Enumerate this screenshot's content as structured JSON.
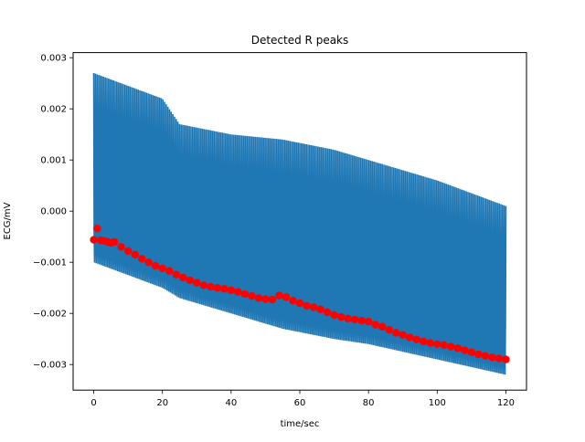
{
  "chart_data": {
    "type": "line",
    "title": "Detected R peaks",
    "xlabel": "time/sec",
    "ylabel": "ECG/mV",
    "xlim": [
      -6,
      126
    ],
    "ylim": [
      -0.0035,
      0.0031
    ],
    "xticks": [
      0,
      20,
      40,
      60,
      80,
      100,
      120
    ],
    "xtick_labels": [
      "0",
      "20",
      "40",
      "60",
      "80",
      "100",
      "120"
    ],
    "yticks": [
      -0.003,
      -0.002,
      -0.001,
      0.0,
      0.001,
      0.002,
      0.003
    ],
    "ytick_labels": [
      "−0.003",
      "−0.002",
      "−0.001",
      "0.000",
      "0.001",
      "0.002",
      "0.003"
    ],
    "grid": false,
    "colors": {
      "signal": "#1f77b4",
      "peaks": "#ff0000"
    },
    "series": [
      {
        "kind": "line",
        "color": "#1f77b4",
        "x": [
          0,
          20,
          25,
          40,
          55,
          70,
          80,
          100,
          120
        ],
        "upper_envelope": [
          0.0027,
          0.0022,
          0.0017,
          0.0015,
          0.0014,
          0.0012,
          0.001,
          0.0006,
          0.0001
        ],
        "lower_envelope": [
          -0.001,
          -0.0015,
          -0.0017,
          -0.002,
          -0.0023,
          -0.0025,
          -0.0026,
          -0.0029,
          -0.0032
        ]
      },
      {
        "kind": "scatter",
        "color": "#ff0000",
        "x": [
          0,
          1,
          2,
          3,
          4,
          5,
          6,
          8,
          10,
          12,
          14,
          16,
          18,
          20,
          22,
          24,
          26,
          28,
          30,
          32,
          34,
          36,
          38,
          40,
          42,
          44,
          46,
          48,
          50,
          52,
          54,
          56,
          58,
          60,
          62,
          64,
          66,
          68,
          70,
          72,
          74,
          76,
          78,
          80,
          82,
          84,
          86,
          88,
          90,
          92,
          94,
          96,
          98,
          100,
          102,
          104,
          106,
          108,
          110,
          112,
          114,
          116,
          118,
          120
        ],
        "y": [
          -0.00056,
          -0.00034,
          -0.00057,
          -0.00058,
          -0.0006,
          -0.00062,
          -0.0006,
          -0.0007,
          -0.00078,
          -0.00085,
          -0.00093,
          -0.001,
          -0.00107,
          -0.00112,
          -0.00117,
          -0.00124,
          -0.0013,
          -0.00135,
          -0.0014,
          -0.00145,
          -0.00148,
          -0.0015,
          -0.00152,
          -0.00155,
          -0.00158,
          -0.00162,
          -0.00166,
          -0.0017,
          -0.00172,
          -0.00173,
          -0.00165,
          -0.00168,
          -0.00175,
          -0.0018,
          -0.00185,
          -0.00188,
          -0.00192,
          -0.00198,
          -0.00203,
          -0.00207,
          -0.0021,
          -0.00212,
          -0.00214,
          -0.00216,
          -0.00222,
          -0.00226,
          -0.00232,
          -0.00238,
          -0.00242,
          -0.00247,
          -0.00251,
          -0.00255,
          -0.00258,
          -0.0026,
          -0.00262,
          -0.00265,
          -0.00268,
          -0.00272,
          -0.00276,
          -0.0028,
          -0.00283,
          -0.00286,
          -0.00288,
          -0.0029
        ]
      }
    ]
  }
}
